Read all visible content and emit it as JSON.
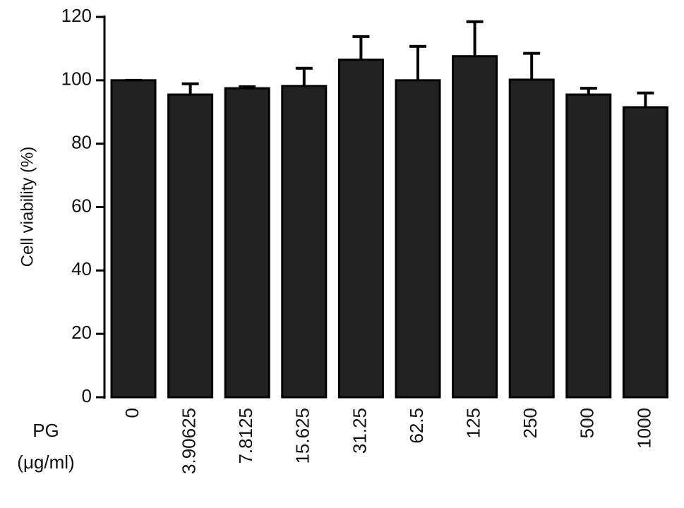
{
  "chart_data": {
    "type": "bar",
    "y_label": "Cell viability (%)",
    "x_label": [
      "PG",
      "(μg/ml)"
    ],
    "categories": [
      "0",
      "3.90625",
      "7.8125",
      "15.625",
      "31.25",
      "62.5",
      "125",
      "250",
      "500",
      "1000"
    ],
    "values": [
      100,
      95.5,
      97.5,
      98.2,
      106.5,
      100,
      107.6,
      100.2,
      95.5,
      91.5
    ],
    "errors": [
      0,
      3.4,
      0.5,
      5.6,
      7.3,
      10.7,
      10.9,
      8.3,
      2,
      4.5
    ],
    "color": "#222222",
    "ylim": [
      0,
      120
    ],
    "yticks": [
      0,
      20,
      40,
      60,
      80,
      100,
      120
    ],
    "grid": false
  }
}
